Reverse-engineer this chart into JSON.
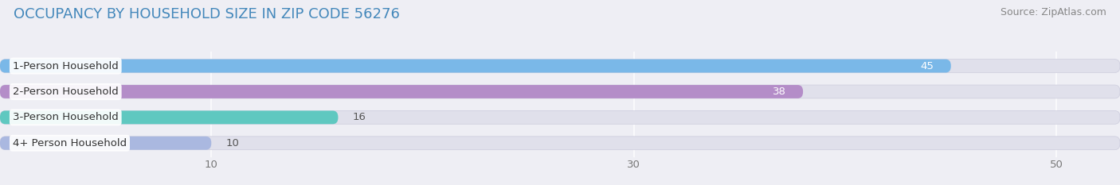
{
  "title": "OCCUPANCY BY HOUSEHOLD SIZE IN ZIP CODE 56276",
  "source": "Source: ZipAtlas.com",
  "categories": [
    "1-Person Household",
    "2-Person Household",
    "3-Person Household",
    "4+ Person Household"
  ],
  "values": [
    45,
    38,
    16,
    10
  ],
  "bar_colors": [
    "#7ab8e8",
    "#b48dc8",
    "#5fc8c0",
    "#aab8e0"
  ],
  "xlim_max": 53,
  "xticks": [
    10,
    30,
    50
  ],
  "background_color": "#eeeef4",
  "bar_bg_color": "#e0e0eb",
  "title_color": "#4488bb",
  "title_fontsize": 13,
  "source_fontsize": 9,
  "label_fontsize": 9.5,
  "tick_fontsize": 9.5,
  "bar_height": 0.52,
  "value_inside_color": "white",
  "value_outside_color": "#555555"
}
